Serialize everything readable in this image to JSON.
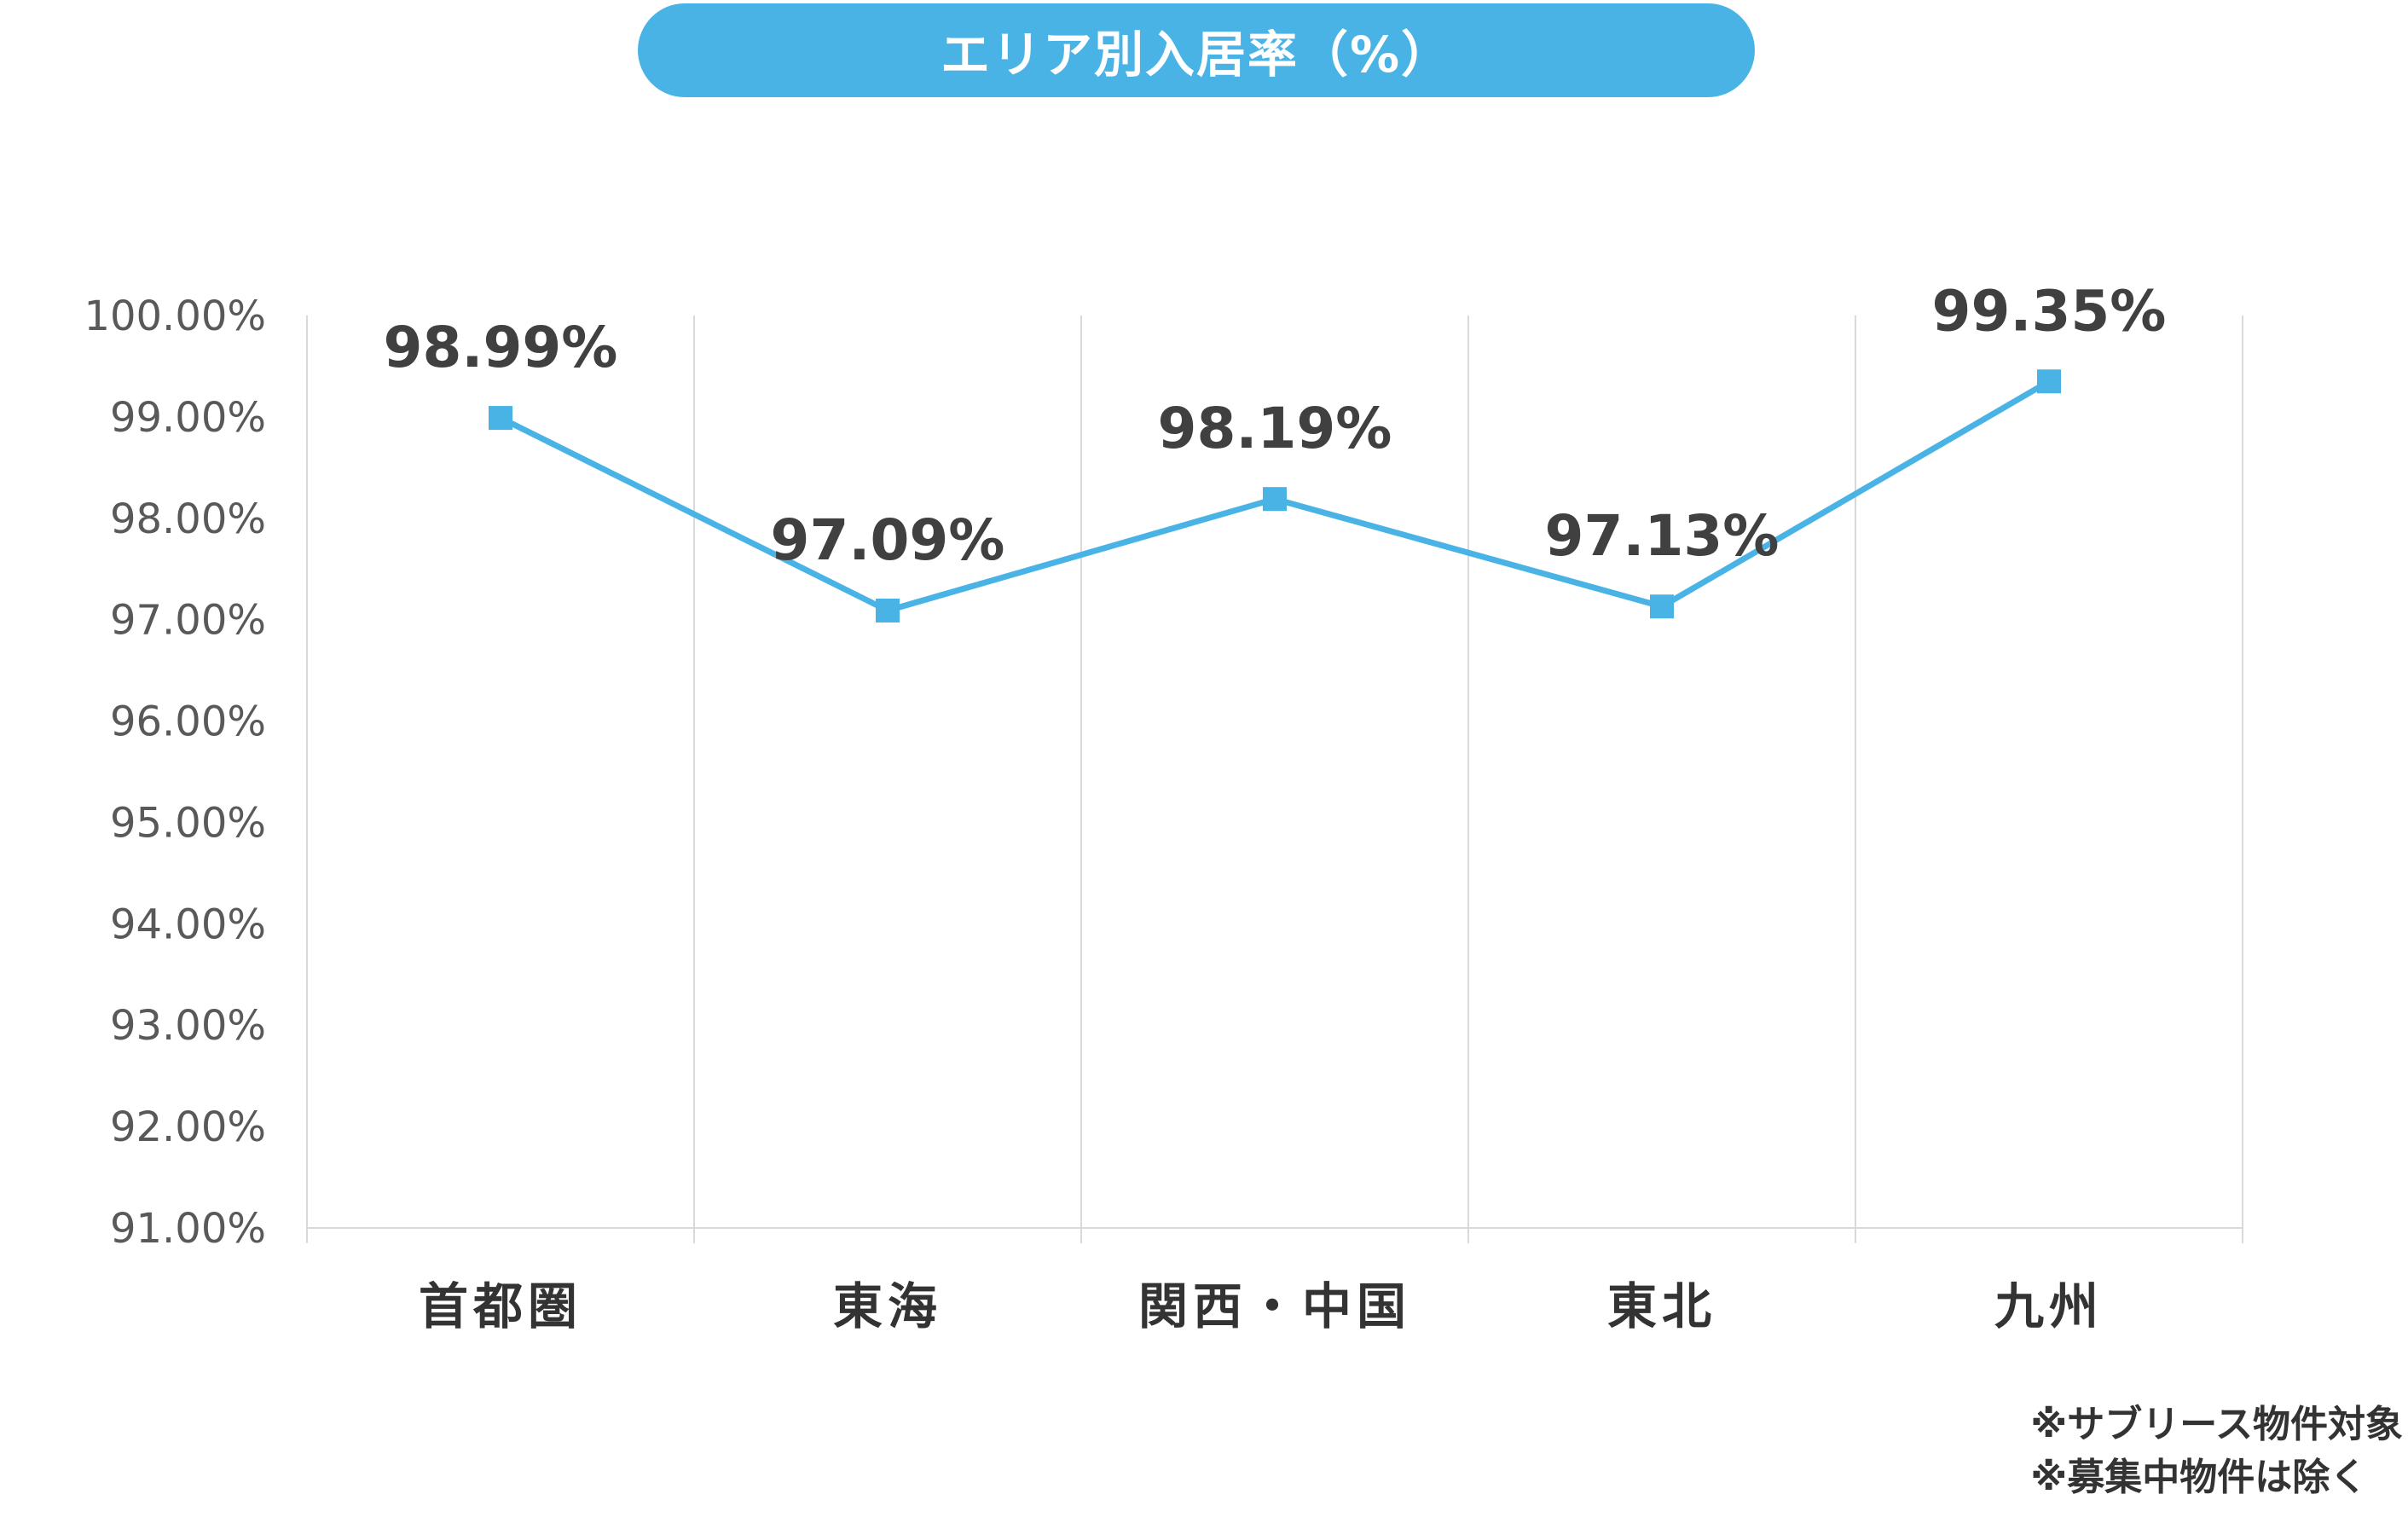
{
  "chart_data": {
    "type": "line",
    "title": "エリア別入居率（%）",
    "categories": [
      "首都圏",
      "東海",
      "関西・中国",
      "東北",
      "九州"
    ],
    "series": [
      {
        "values": [
          98.99,
          97.09,
          98.19,
          97.13,
          99.35
        ]
      }
    ],
    "data_labels": [
      "98.99%",
      "97.09%",
      "98.19%",
      "97.13%",
      "99.35%"
    ],
    "ylim": [
      91,
      100
    ],
    "yticks": [
      "100.00%",
      "99.00%",
      "98.00%",
      "97.00%",
      "96.00%",
      "95.00%",
      "94.00%",
      "93.00%",
      "92.00%",
      "91.00%"
    ],
    "ytick_values": [
      100,
      99,
      98,
      97,
      96,
      95,
      94,
      93,
      92,
      91
    ],
    "xlabel": "",
    "ylabel": "",
    "grid": "vertical",
    "line_color": "#4AB3E6",
    "marker": "square"
  },
  "notes": [
    "※サブリース物件対象",
    "※募集中物件は除く"
  ]
}
